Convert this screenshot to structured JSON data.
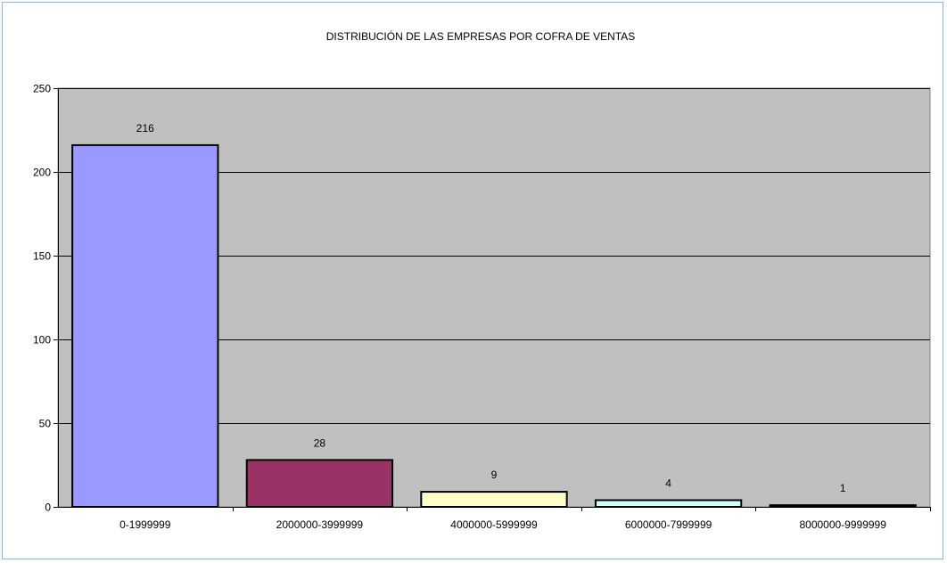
{
  "chart_data": {
    "type": "bar",
    "title": "DISTRIBUCIÓN DE LAS EMPRESAS POR COFRA DE VENTAS",
    "xlabel": "",
    "ylabel": "",
    "categories": [
      "0-1999999",
      "2000000-3999999",
      "4000000-5999999",
      "6000000-7999999",
      "8000000-9999999"
    ],
    "values": [
      216,
      28,
      9,
      4,
      1
    ],
    "data_labels": [
      "216",
      "28",
      "9",
      "4",
      "1"
    ],
    "ylim": [
      0,
      250
    ],
    "yticks": [
      0,
      50,
      100,
      150,
      200,
      250
    ],
    "ytick_labels": [
      "0",
      "50",
      "100",
      "150",
      "200",
      "250"
    ],
    "bar_colors": [
      "#9999ff",
      "#993366",
      "#ffffcc",
      "#ccffff",
      "#1f1f1f"
    ],
    "plot_background": "#c0c0c0",
    "grid": true,
    "legend": "none"
  }
}
